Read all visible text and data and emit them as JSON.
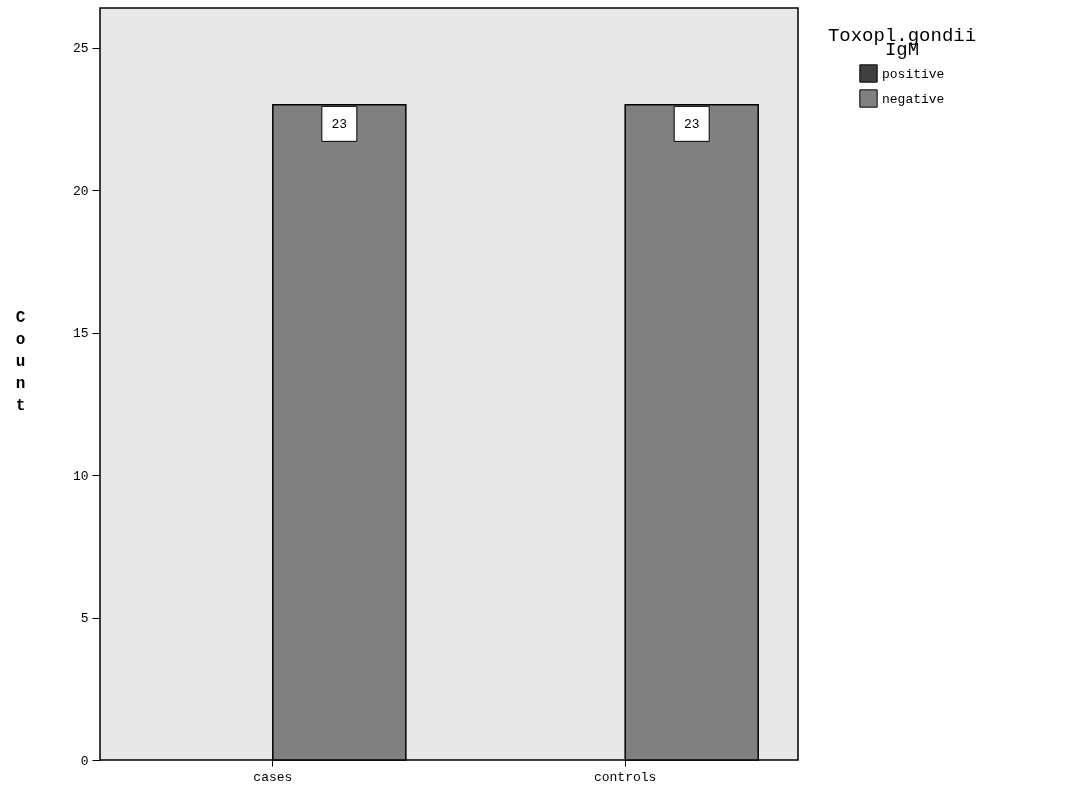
{
  "chart_data": {
    "type": "bar",
    "categories": [
      "cases",
      "controls"
    ],
    "series": [
      {
        "name": "positive",
        "color": "#404040",
        "values": [
          0,
          0
        ]
      },
      {
        "name": "negative",
        "color": "#808080",
        "values": [
          23,
          23
        ],
        "value_labels": [
          "23",
          "23"
        ]
      }
    ],
    "ylabel": "Count",
    "legend_title": "Toxopl.gondii IgM",
    "ylim": [
      0,
      26.4
    ],
    "yticks": [
      0,
      5,
      10,
      15,
      20,
      25
    ],
    "grid": false,
    "legend": "top right"
  }
}
